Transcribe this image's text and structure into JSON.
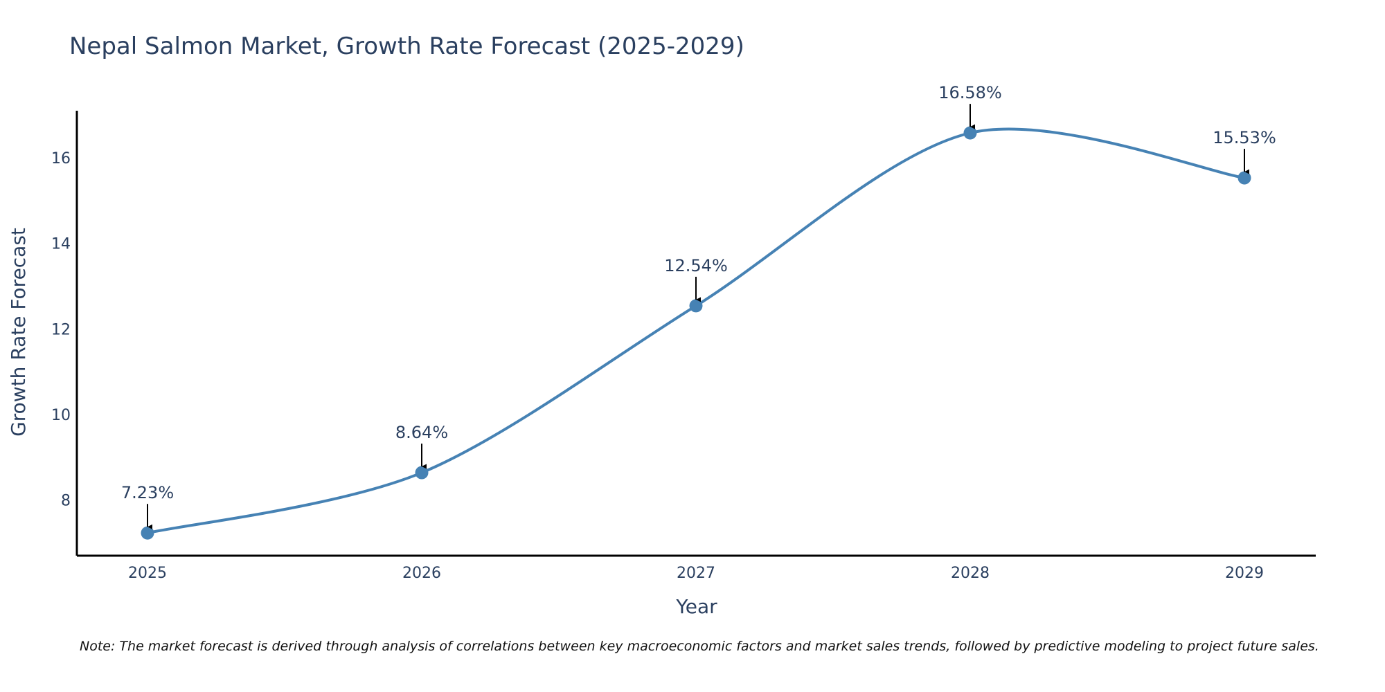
{
  "chart_data": {
    "type": "line",
    "title": "Nepal Salmon Market, Growth Rate Forecast (2025-2029)",
    "xlabel": "Year",
    "ylabel": "Growth Rate Forecast",
    "categories": [
      "2025",
      "2026",
      "2027",
      "2028",
      "2029"
    ],
    "series": [
      {
        "name": "Growth Rate Forecast",
        "values": [
          7.23,
          8.64,
          12.54,
          16.58,
          15.53
        ],
        "labels": [
          "7.23%",
          "8.64%",
          "12.54%",
          "16.58%",
          "15.53%"
        ],
        "color": "#4682B4",
        "line_shape": "spline"
      }
    ],
    "yticks": [
      8,
      10,
      12,
      14,
      16
    ],
    "ylim": [
      6.7,
      17.1
    ],
    "grid": false,
    "note": "Note: The market forecast is derived through analysis of correlations between key macroeconomic factors and market sales trends, followed by predictive modeling to project future sales."
  },
  "colors": {
    "line": "#4682B4",
    "text": "#2a3f5f",
    "axis": "#000000",
    "arrow": "#000000"
  }
}
